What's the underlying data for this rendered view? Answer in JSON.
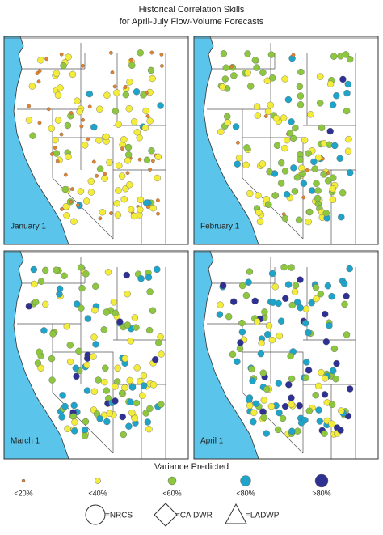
{
  "title": [
    "Historical Correlation Skills",
    "for April-July Flow-Volume Forecasts"
  ],
  "panels": [
    {
      "label": "January 1"
    },
    {
      "label": "February 1"
    },
    {
      "label": "March 1"
    },
    {
      "label": "April 1"
    }
  ],
  "legend": {
    "title": "Variance Predicted",
    "items": [
      {
        "label": "<20%",
        "color": "#e3822a"
      },
      {
        "label": "<40%",
        "color": "#f4ec3a"
      },
      {
        "label": "<60%",
        "color": "#8dc63f"
      },
      {
        "label": "<80%",
        "color": "#1ea4c9"
      },
      {
        "label": ">80%",
        "color": "#2e3192"
      }
    ],
    "shapes": [
      {
        "label": "=NRCS",
        "shape": "circle"
      },
      {
        "label": "=CA DWR",
        "shape": "diamond"
      },
      {
        "label": "=LADWP",
        "shape": "triangle"
      }
    ]
  }
}
